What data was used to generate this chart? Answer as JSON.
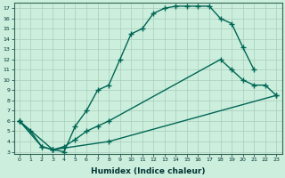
{
  "xlabel": "Humidex (Indice chaleur)",
  "bg_color": "#cceedd",
  "grid_color": "#aaccbb",
  "line_color": "#006655",
  "xlim": [
    -0.5,
    23.5
  ],
  "ylim": [
    2.8,
    17.5
  ],
  "xticks": [
    0,
    1,
    2,
    3,
    4,
    5,
    6,
    7,
    8,
    9,
    10,
    11,
    12,
    13,
    14,
    15,
    16,
    17,
    18,
    19,
    20,
    21,
    22,
    23
  ],
  "yticks": [
    3,
    4,
    5,
    6,
    7,
    8,
    9,
    10,
    11,
    12,
    13,
    14,
    15,
    16,
    17
  ],
  "line1_x": [
    0,
    1,
    2,
    3,
    4,
    5,
    6,
    7,
    8,
    9,
    10,
    11,
    12,
    13,
    14,
    15,
    16,
    17,
    18,
    19,
    20,
    21
  ],
  "line1_y": [
    6.0,
    5.0,
    3.5,
    3.2,
    3.0,
    5.5,
    7.0,
    9.0,
    9.5,
    12.0,
    14.5,
    15.0,
    16.5,
    17.0,
    17.2,
    17.2,
    17.2,
    17.2,
    16.0,
    15.5,
    13.2,
    11.0
  ],
  "line2_x": [
    0,
    2,
    3,
    4,
    5,
    6,
    7,
    8,
    18,
    19,
    20,
    21,
    22,
    23
  ],
  "line2_y": [
    6.0,
    3.5,
    3.2,
    3.5,
    4.2,
    5.0,
    5.5,
    6.0,
    12.0,
    11.0,
    10.0,
    9.5,
    9.5,
    8.5
  ],
  "line3_x": [
    0,
    3,
    8,
    23
  ],
  "line3_y": [
    6.0,
    3.2,
    4.0,
    8.5
  ],
  "marker": "+",
  "marker_size": 4,
  "linewidth": 1.0
}
